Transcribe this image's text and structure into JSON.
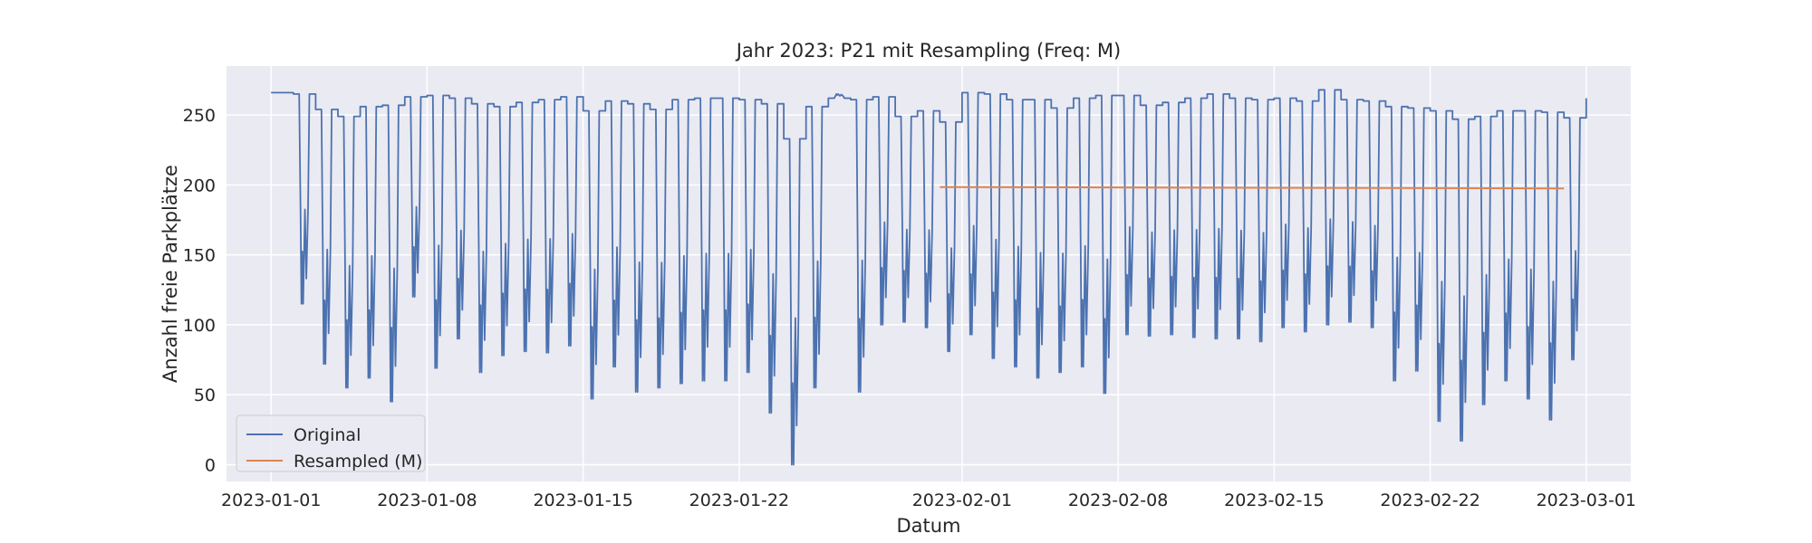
{
  "chart_data": {
    "type": "line",
    "title": "Jahr 2023: P21 mit Resampling (Freq: M)",
    "xlabel": "Datum",
    "ylabel": "Anzahl freie Parkplätze",
    "xlim": [
      "2022-12-30",
      "2023-03-03"
    ],
    "ylim": [
      -12,
      285
    ],
    "grid": true,
    "legend_position": "lower-left",
    "x_ticks": [
      "2023-01-01",
      "2023-01-08",
      "2023-01-15",
      "2023-01-22",
      "2023-02-01",
      "2023-02-08",
      "2023-02-15",
      "2023-02-22",
      "2023-03-01"
    ],
    "y_ticks": [
      0,
      50,
      100,
      150,
      200,
      250
    ],
    "series": [
      {
        "name": "Original",
        "color": "#4c72b0",
        "x": [
          "2023-01-01",
          "2023-01-02",
          "2023-01-03",
          "2023-01-04",
          "2023-01-05",
          "2023-01-06",
          "2023-01-07",
          "2023-01-08",
          "2023-01-09",
          "2023-01-10",
          "2023-01-11",
          "2023-01-12",
          "2023-01-13",
          "2023-01-14",
          "2023-01-15",
          "2023-01-16",
          "2023-01-17",
          "2023-01-18",
          "2023-01-19",
          "2023-01-20",
          "2023-01-21",
          "2023-01-22",
          "2023-01-23",
          "2023-01-24",
          "2023-01-25",
          "2023-01-26",
          "2023-01-27",
          "2023-01-28",
          "2023-01-29",
          "2023-01-30",
          "2023-01-31",
          "2023-02-01",
          "2023-02-02",
          "2023-02-03",
          "2023-02-04",
          "2023-02-05",
          "2023-02-06",
          "2023-02-07",
          "2023-02-08",
          "2023-02-09",
          "2023-02-10",
          "2023-02-11",
          "2023-02-12",
          "2023-02-13",
          "2023-02-14",
          "2023-02-15",
          "2023-02-16",
          "2023-02-17",
          "2023-02-18",
          "2023-02-19",
          "2023-02-20",
          "2023-02-21",
          "2023-02-22",
          "2023-02-23",
          "2023-02-24",
          "2023-02-25",
          "2023-02-26",
          "2023-02-27",
          "2023-02-28",
          "2023-03-01"
        ],
        "daily_max": [
          266,
          265,
          254,
          249,
          256,
          257,
          263,
          264,
          262,
          258,
          256,
          259,
          261,
          263,
          253,
          260,
          258,
          254,
          261,
          262,
          262,
          261,
          258,
          233,
          256,
          262,
          261,
          263,
          249,
          253,
          245,
          266,
          265,
          261,
          261,
          255,
          262,
          264,
          264,
          257,
          259,
          262,
          265,
          262,
          261,
          262,
          260,
          268,
          261,
          260,
          256,
          255,
          253,
          247,
          249,
          253,
          253,
          252,
          248,
          262
        ],
        "daily_min": [
          266,
          115,
          72,
          55,
          62,
          45,
          120,
          69,
          90,
          66,
          78,
          81,
          80,
          85,
          47,
          70,
          52,
          55,
          58,
          60,
          60,
          66,
          37,
          0,
          55,
          265,
          52,
          100,
          102,
          98,
          81,
          93,
          76,
          70,
          62,
          66,
          70,
          51,
          93,
          92,
          93,
          91,
          90,
          90,
          88,
          98,
          95,
          100,
          102,
          98,
          60,
          67,
          31,
          17,
          43,
          60,
          47,
          32,
          75,
          262
        ]
      },
      {
        "name": "Resampled (M)",
        "color": "#dd8452",
        "x": [
          "2023-01-31",
          "2023-02-28"
        ],
        "values": [
          198.5,
          197.5
        ]
      }
    ]
  }
}
